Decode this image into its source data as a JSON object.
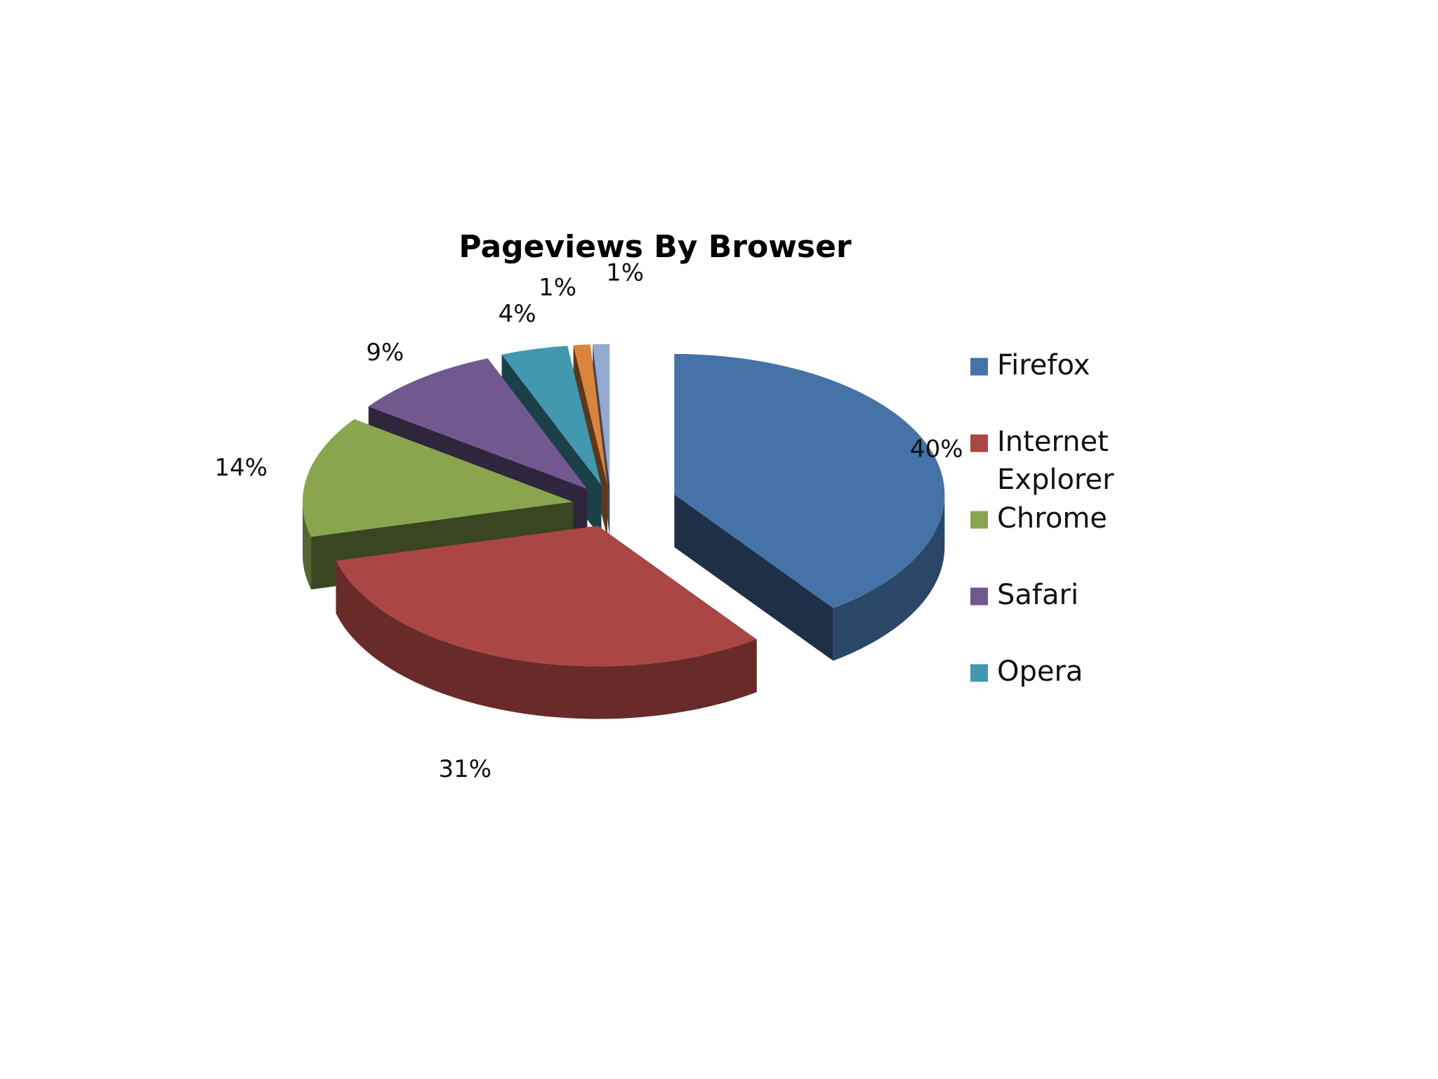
{
  "chart_data": {
    "type": "pie",
    "style": "3d-exploded",
    "title": "Pageviews By Browser",
    "slices": [
      {
        "name": "Firefox",
        "value": 40,
        "label": "40%",
        "color": "#4572A7",
        "in_legend": true
      },
      {
        "name": "Internet Explorer",
        "value": 31,
        "label": "31%",
        "color": "#AA4643",
        "in_legend": true
      },
      {
        "name": "Chrome",
        "value": 14,
        "label": "14%",
        "color": "#89A54E",
        "in_legend": true
      },
      {
        "name": "Safari",
        "value": 9,
        "label": "9%",
        "color": "#71588F",
        "in_legend": true
      },
      {
        "name": "Opera",
        "value": 4,
        "label": "4%",
        "color": "#4198AF",
        "in_legend": true
      },
      {
        "name": "",
        "value": 1,
        "label": "1%",
        "color": "#DB843D",
        "in_legend": false
      },
      {
        "name": "",
        "value": 1,
        "label": "1%",
        "color": "#93A9CF",
        "in_legend": false
      }
    ],
    "legend": {
      "position": "right",
      "entries": [
        {
          "lines": [
            "Firefox"
          ],
          "color": "#4572A7"
        },
        {
          "lines": [
            "Internet",
            "Explorer"
          ],
          "color": "#AA4643"
        },
        {
          "lines": [
            "Chrome"
          ],
          "color": "#89A54E"
        },
        {
          "lines": [
            "Safari"
          ],
          "color": "#71588F"
        },
        {
          "lines": [
            "Opera"
          ],
          "color": "#4198AF"
        }
      ]
    }
  }
}
